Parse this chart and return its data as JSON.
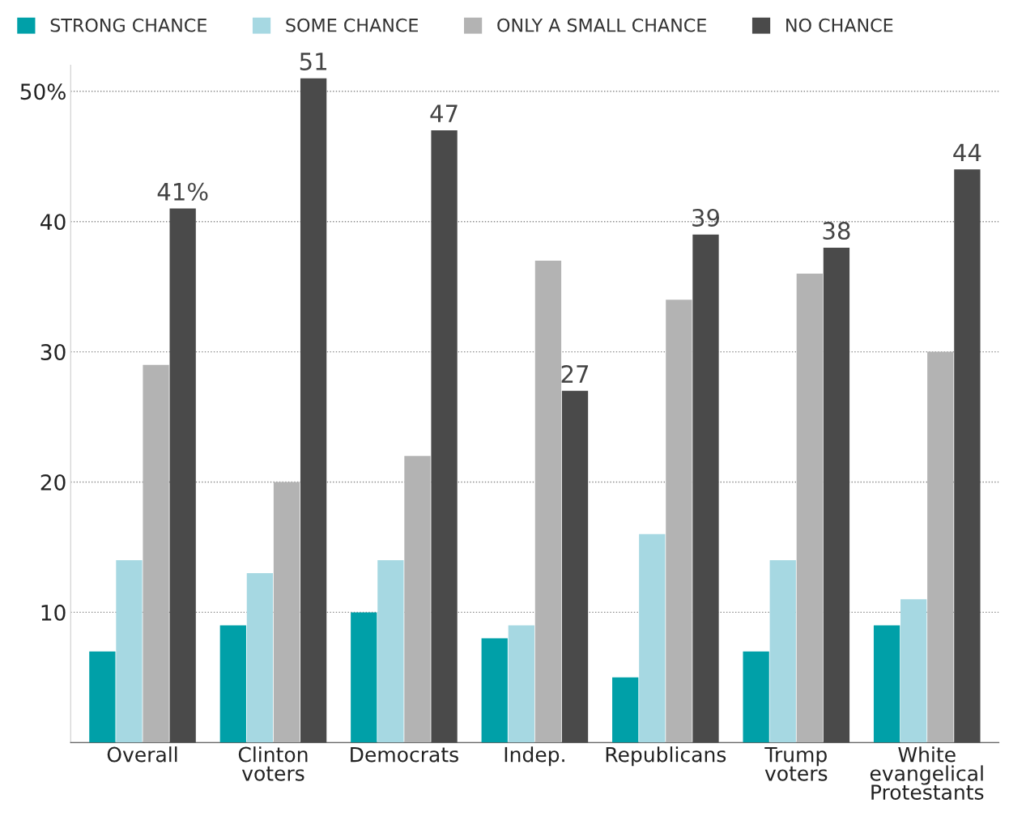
{
  "chart_data": {
    "type": "bar",
    "categories": [
      "Overall",
      "Clinton\nvoters",
      "Democrats",
      "Indep.",
      "Republicans",
      "Trump\nvoters",
      "White\nevangelical\nProtestants"
    ],
    "series": [
      {
        "name": "STRONG CHANCE",
        "color": "#00a0a8",
        "values": [
          7,
          9,
          10,
          8,
          5,
          7,
          9
        ]
      },
      {
        "name": "SOME CHANCE",
        "color": "#a6d8e2",
        "values": [
          14,
          13,
          14,
          9,
          16,
          14,
          11
        ]
      },
      {
        "name": "ONLY A SMALL CHANCE",
        "color": "#b3b3b3",
        "values": [
          29,
          20,
          22,
          37,
          34,
          36,
          30
        ]
      },
      {
        "name": "NO CHANCE",
        "color": "#4a4a4a",
        "values": [
          41,
          51,
          47,
          27,
          39,
          38,
          44
        ],
        "value_labels": [
          "41%",
          "51",
          "47",
          "27",
          "39",
          "38",
          "44"
        ]
      }
    ],
    "ylim": [
      0,
      52
    ],
    "yticks": [
      10,
      20,
      30,
      40,
      {
        "value": 50,
        "label": "50%"
      }
    ],
    "grid": "y",
    "legend": "top"
  }
}
